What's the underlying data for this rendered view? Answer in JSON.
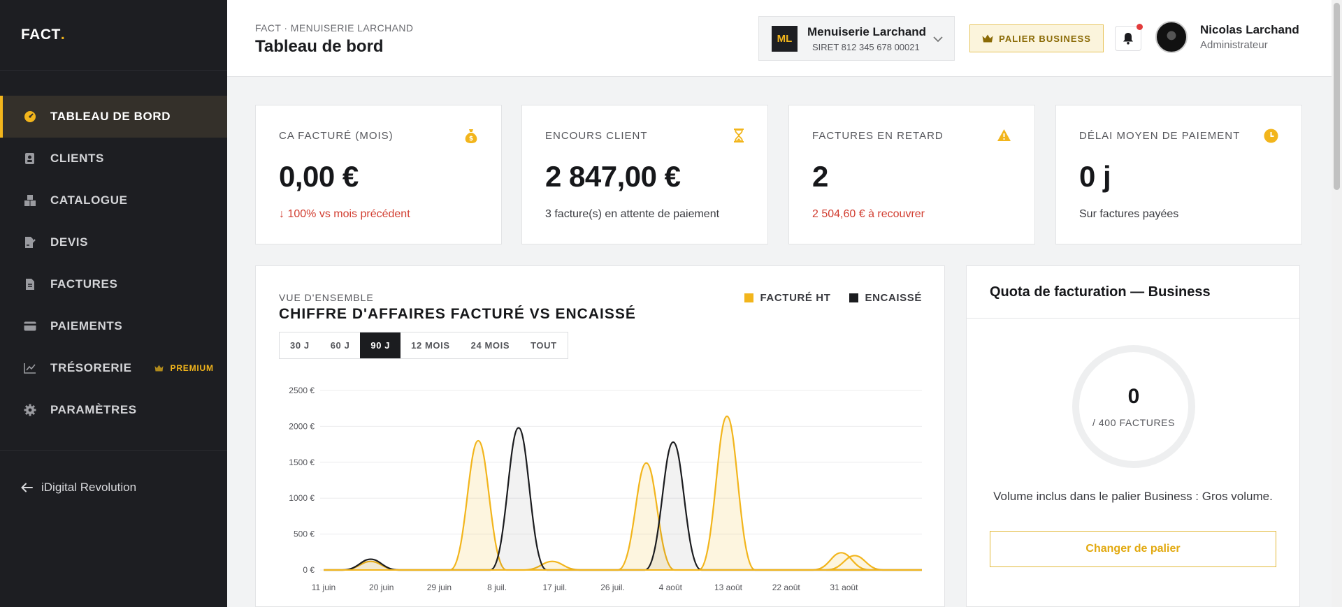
{
  "brand": {
    "name": "FACT",
    "dot": "."
  },
  "sidebar": {
    "items": [
      {
        "key": "tableau",
        "label": "TABLEAU DE BORD",
        "icon": "gauge-icon",
        "active": true
      },
      {
        "key": "clients",
        "label": "CLIENTS",
        "icon": "address-book-icon"
      },
      {
        "key": "catalogue",
        "label": "CATALOGUE",
        "icon": "boxes-icon"
      },
      {
        "key": "devis",
        "label": "DEVIS",
        "icon": "file-signature-icon"
      },
      {
        "key": "factures",
        "label": "FACTURES",
        "icon": "invoice-icon"
      },
      {
        "key": "paiements",
        "label": "PAIEMENTS",
        "icon": "credit-card-icon"
      },
      {
        "key": "tresorerie",
        "label": "TRÉSORERIE",
        "icon": "line-chart-icon",
        "badge": "PREMIUM"
      },
      {
        "key": "parametres",
        "label": "PARAMÈTRES",
        "icon": "gear-icon"
      }
    ],
    "back_label": "iDigital Revolution"
  },
  "header": {
    "breadcrumb": "FACT · MENUISERIE LARCHAND",
    "title": "Tableau de bord",
    "company": {
      "initials": "ML",
      "name": "Menuiserie Larchand",
      "siret": "SIRET 812 345 678 00021"
    },
    "tier_label": "PALIER BUSINESS",
    "user": {
      "name": "Nicolas Larchand",
      "role": "Administrateur"
    }
  },
  "kpis": [
    {
      "label": "CA FACTURÉ (MOIS)",
      "value": "0,00 €",
      "sub": "↓ 100% vs mois précédent",
      "sub_red": true,
      "icon": "money-bag-icon"
    },
    {
      "label": "ENCOURS CLIENT",
      "value": "2 847,00 €",
      "sub": "3 facture(s) en attente de paiement",
      "sub_red": false,
      "icon": "hourglass-icon"
    },
    {
      "label": "FACTURES EN RETARD",
      "value": "2",
      "sub": "2 504,60 € à recouvrer",
      "sub_red": true,
      "icon": "warning-icon"
    },
    {
      "label": "DÉLAI MOYEN DE PAIEMENT",
      "value": "0 j",
      "sub": "Sur factures payées",
      "sub_red": false,
      "icon": "clock-icon"
    }
  ],
  "overview": {
    "eyebrow": "VUE D'ENSEMBLE",
    "title": "CHIFFRE D'AFFAIRES FACTURÉ VS ENCAISSÉ",
    "ranges": [
      "30 J",
      "60 J",
      "90 J",
      "12 MOIS",
      "24 MOIS",
      "TOUT"
    ],
    "selected_range": "90 J"
  },
  "chart_data": {
    "type": "area",
    "ylim": [
      0,
      2500
    ],
    "yticks": [
      "0 €",
      "500 €",
      "1000 €",
      "1500 €",
      "2000 €",
      "2500 €"
    ],
    "x_labels": [
      "11 juin",
      "20 juin",
      "29 juin",
      "8 juil.",
      "17 juil.",
      "26 juil.",
      "4 août",
      "13 août",
      "22 août",
      "31 août"
    ],
    "x_range_days": [
      0,
      89
    ],
    "series": [
      {
        "name": "FACTURÉ HT",
        "color": "#f2b51c",
        "points": [
          [
            7,
            120
          ],
          [
            23,
            1800
          ],
          [
            34,
            120
          ],
          [
            48,
            1490
          ],
          [
            60,
            2140
          ],
          [
            77,
            240
          ],
          [
            79,
            200
          ]
        ]
      },
      {
        "name": "ENCAISSÉ",
        "color": "#1b1c1f",
        "points": [
          [
            7,
            150
          ],
          [
            29,
            1980
          ],
          [
            52,
            1780
          ]
        ]
      }
    ]
  },
  "quota": {
    "title": "Quota de facturation — Business",
    "used": "0",
    "of_label": "/ 400 FACTURES",
    "description": "Volume inclus dans le palier Business : Gros volume.",
    "change_label": "Changer de palier"
  },
  "colors": {
    "accent": "#f2b51c",
    "sidebar": "#1d1e22",
    "danger": "#d13d30"
  }
}
